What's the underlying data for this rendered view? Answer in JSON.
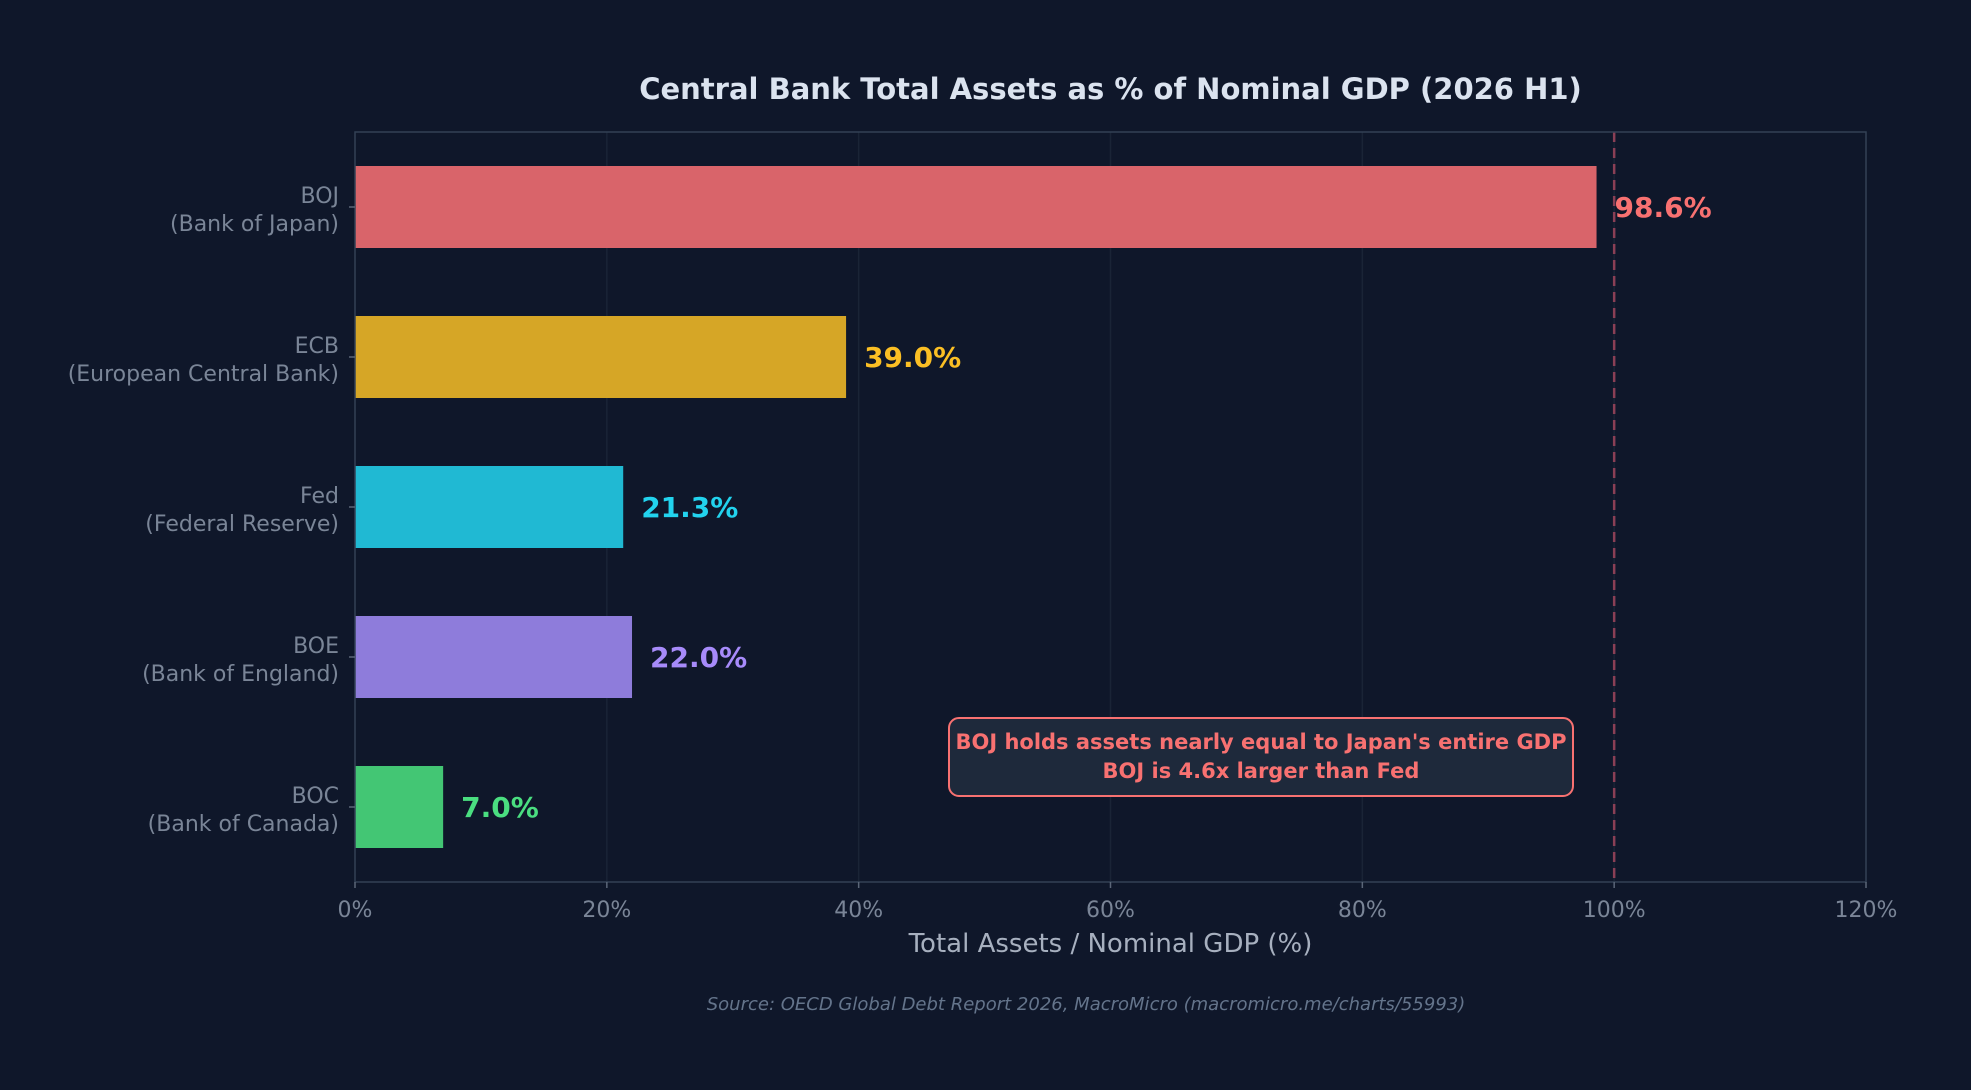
{
  "chart_data": {
    "type": "bar",
    "orientation": "horizontal",
    "title": "Central Bank Total Assets as % of Nominal GDP (2026 H1)",
    "xlabel": "Total Assets / Nominal GDP (%)",
    "ylabel": "",
    "xlim": [
      0,
      120
    ],
    "x_ticks": [
      "0%",
      "20%",
      "40%",
      "60%",
      "80%",
      "100%",
      "120%"
    ],
    "x_tick_values": [
      0,
      20,
      40,
      60,
      80,
      100,
      120
    ],
    "grid": "vertical",
    "categories": [
      {
        "code": "BOJ",
        "name": "(Bank of Japan)"
      },
      {
        "code": "ECB",
        "name": "(European Central Bank)"
      },
      {
        "code": "Fed",
        "name": "(Federal Reserve)"
      },
      {
        "code": "BOE",
        "name": "(Bank of England)"
      },
      {
        "code": "BOC",
        "name": "(Bank of Canada)"
      }
    ],
    "values": [
      98.6,
      39.0,
      21.3,
      22.0,
      7.0
    ],
    "value_labels": [
      "98.6%",
      "39.0%",
      "21.3%",
      "22.0%",
      "7.0%"
    ],
    "bar_colors": [
      "#d9646a",
      "#d6a626",
      "#20b9d3",
      "#8e7cdb",
      "#43c674"
    ],
    "label_colors": [
      "#f87171",
      "#fbbf24",
      "#22d3ee",
      "#a78bfa",
      "#4ade80"
    ],
    "reference_line": {
      "x": 100,
      "style": "dashed",
      "color": "#7a3a4a"
    },
    "annotation": {
      "lines": [
        "BOJ holds assets nearly equal to Japan's entire GDP",
        "BOJ is 4.6x larger than Fed"
      ],
      "color": "#f87171",
      "border_color": "#f87171",
      "background": "#1e293b"
    },
    "source": "Source: OECD Global Debt Report 2026, MacroMicro (macromicro.me/charts/55993)"
  },
  "colors": {
    "background": "#0f172a",
    "plot_background": "#0f172a",
    "frame": "#334155",
    "grid": "#1a2436"
  }
}
